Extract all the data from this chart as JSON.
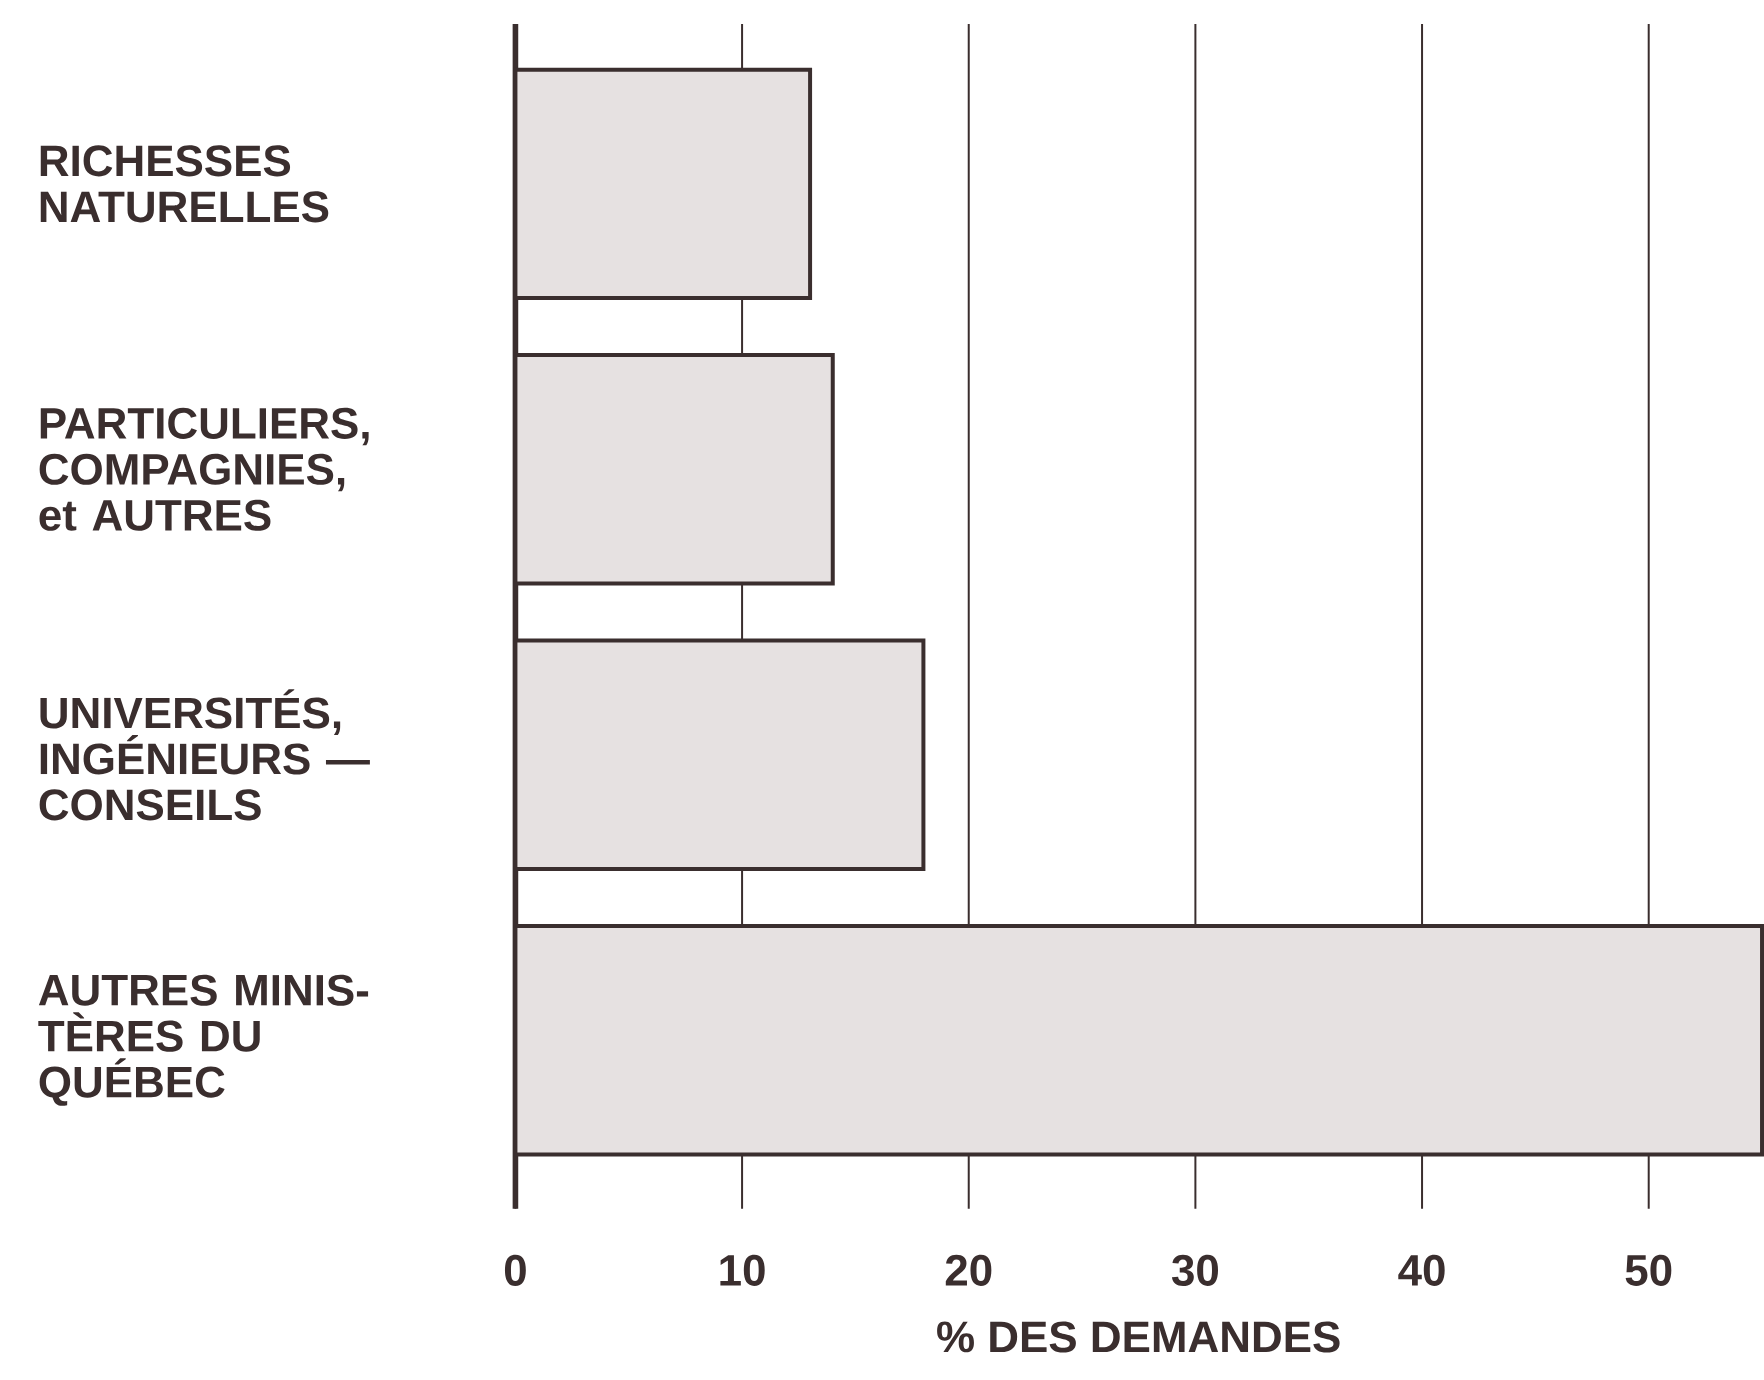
{
  "chart_data": {
    "type": "bar",
    "orientation": "horizontal",
    "xlabel": "% DES DEMANDES",
    "categories": [
      "RICHESSES NATURELLES",
      "PARTICULIERS, COMPAGNIES, et AUTRES",
      "UNIVERSITÉS, INGÉNIEURS — CONSEILS",
      "AUTRES MINIS-TÈRES DU QUÉBEC"
    ],
    "values": [
      13,
      14,
      18,
      55
    ],
    "color": "#e6e1e1",
    "xlim": [
      0,
      55
    ],
    "xticks": [
      0,
      10,
      20,
      30,
      40,
      50
    ],
    "grid": "x"
  }
}
